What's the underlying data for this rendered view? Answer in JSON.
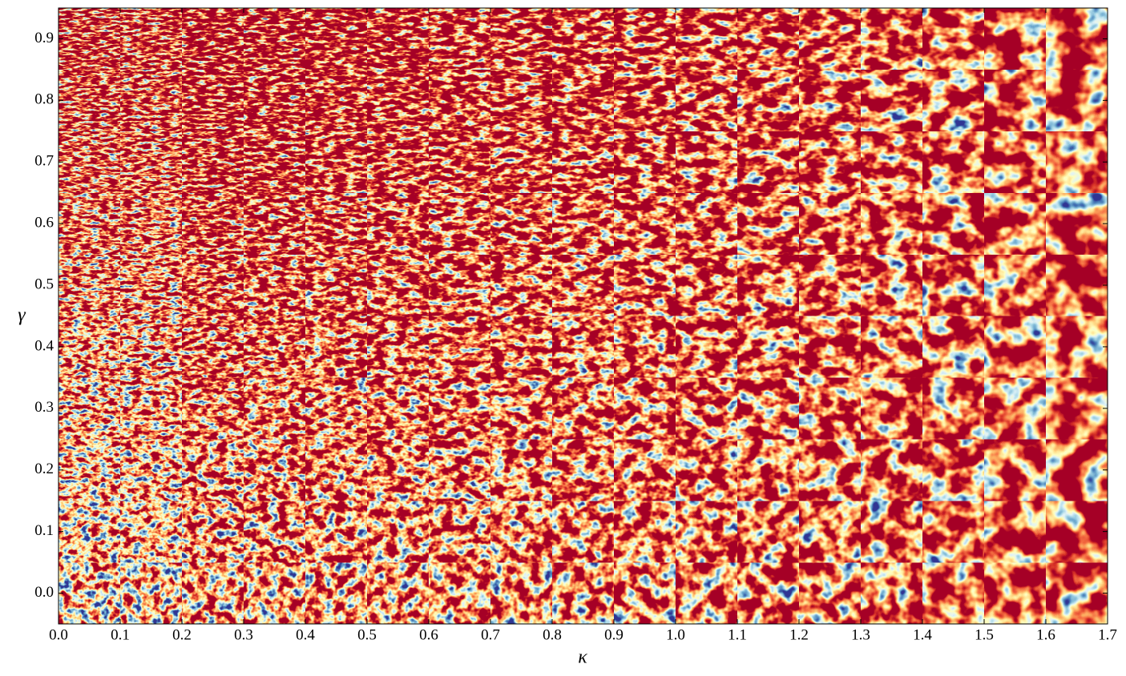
{
  "chart_data": {
    "type": "image-grid",
    "xlabel": "κ",
    "ylabel": "γ",
    "xlim": [
      0,
      1.7
    ],
    "ylim": [
      -0.05,
      0.95
    ],
    "xticks": [
      {
        "value": 0,
        "label": "0.0"
      },
      0.1,
      0.2,
      0.3,
      0.4,
      0.5,
      0.6,
      0.7,
      0.8,
      0.9,
      {
        "value": 1,
        "label": "1.0"
      },
      1.1,
      1.2,
      1.3,
      1.4,
      1.5,
      1.6,
      1.7
    ],
    "yticks": [
      {
        "value": 0,
        "label": "0.0"
      },
      0.1,
      0.2,
      0.3,
      0.4,
      0.5,
      0.6,
      0.7,
      0.8,
      0.9
    ]
  }
}
